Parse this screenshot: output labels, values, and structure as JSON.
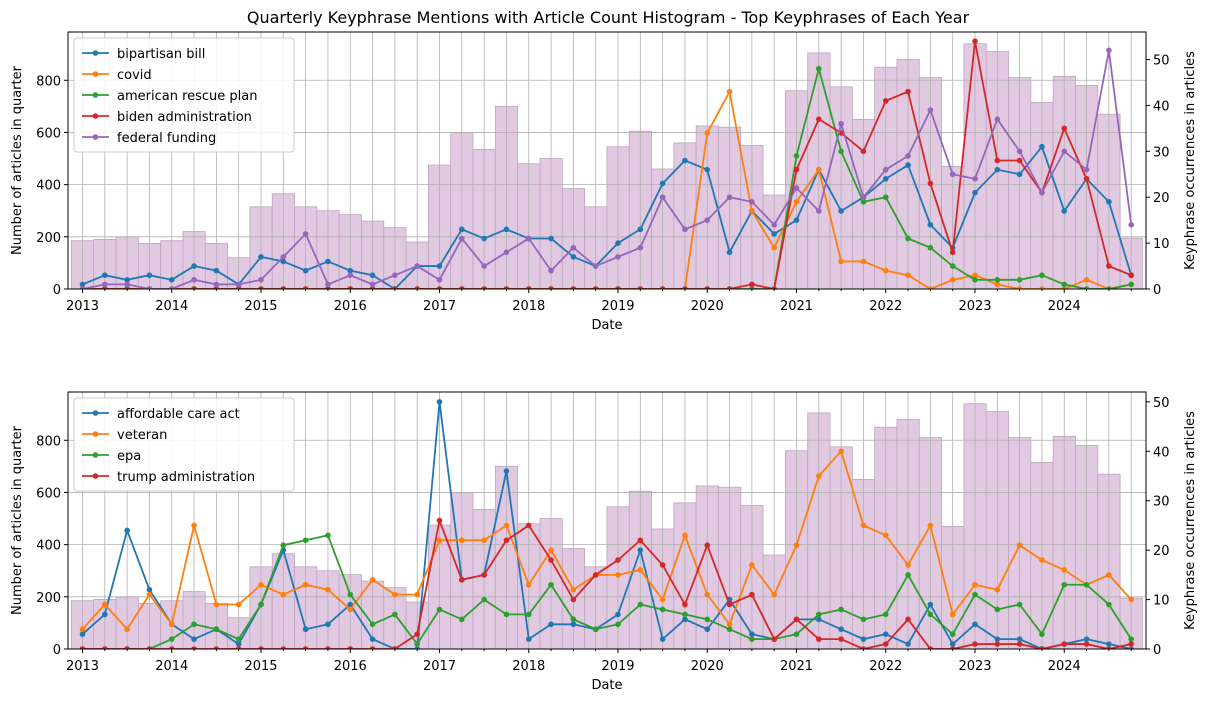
{
  "title": "Quarterly Keyphrase Mentions with Article Count Histogram - Top Keyphrases of Each Year",
  "colors": {
    "hist_fill": "#e1c9e1",
    "hist_edge": "#bfa4bf",
    "grid": "#b0b0b0"
  },
  "chart_data": [
    {
      "type": "line",
      "xlabel": "Date",
      "ylabel_left": "Number of articles in quarter",
      "ylabel_right": "Keyphrase occurrences in articles",
      "ylim_left": [
        0,
        985
      ],
      "ylim_right": [
        0,
        56
      ],
      "yticks_left": [
        "0",
        "200",
        "400",
        "600",
        "800"
      ],
      "yticks_right": [
        "0",
        "10",
        "20",
        "30",
        "40",
        "50"
      ],
      "xticks": [
        "2013",
        "2014",
        "2015",
        "2016",
        "2017",
        "2018",
        "2019",
        "2020",
        "2021",
        "2022",
        "2023",
        "2024"
      ],
      "grid": true,
      "legend_position": "top-left",
      "quarters": [
        "2013Q1",
        "2013Q2",
        "2013Q3",
        "2013Q4",
        "2014Q1",
        "2014Q2",
        "2014Q3",
        "2014Q4",
        "2015Q1",
        "2015Q2",
        "2015Q3",
        "2015Q4",
        "2016Q1",
        "2016Q2",
        "2016Q3",
        "2016Q4",
        "2017Q1",
        "2017Q2",
        "2017Q3",
        "2017Q4",
        "2018Q1",
        "2018Q2",
        "2018Q3",
        "2018Q4",
        "2019Q1",
        "2019Q2",
        "2019Q3",
        "2019Q4",
        "2020Q1",
        "2020Q2",
        "2020Q3",
        "2020Q4",
        "2021Q1",
        "2021Q2",
        "2021Q3",
        "2021Q4",
        "2022Q1",
        "2022Q2",
        "2022Q3",
        "2022Q4",
        "2023Q1",
        "2023Q2",
        "2023Q3",
        "2023Q4",
        "2024Q1",
        "2024Q2",
        "2024Q3",
        "2024Q4"
      ],
      "article_counts": [
        185,
        190,
        200,
        175,
        185,
        220,
        175,
        120,
        315,
        365,
        315,
        300,
        285,
        260,
        235,
        180,
        475,
        600,
        535,
        700,
        480,
        500,
        385,
        315,
        545,
        605,
        460,
        560,
        625,
        620,
        550,
        360,
        760,
        905,
        775,
        650,
        850,
        880,
        810,
        470,
        940,
        910,
        810,
        715,
        815,
        780,
        670,
        195
      ],
      "series": [
        {
          "name": "bipartisan bill",
          "color": "#1f77b4",
          "values": [
            1,
            3,
            2,
            3,
            2,
            5,
            4,
            1,
            7,
            6,
            4,
            6,
            4,
            3,
            0,
            5,
            5,
            13,
            11,
            13,
            11,
            11,
            7,
            5,
            10,
            13,
            23,
            28,
            26,
            8,
            17,
            12,
            15,
            26,
            17,
            20,
            24,
            27,
            14,
            9,
            21,
            26,
            25,
            31,
            17,
            24,
            19,
            3
          ]
        },
        {
          "name": "covid",
          "color": "#ff7f0e",
          "values": [
            0,
            0,
            0,
            0,
            0,
            0,
            0,
            0,
            0,
            0,
            0,
            0,
            0,
            0,
            0,
            0,
            0,
            0,
            0,
            0,
            0,
            0,
            0,
            0,
            0,
            0,
            0,
            0,
            34,
            43,
            17,
            9,
            19,
            26,
            6,
            6,
            4,
            3,
            0,
            2,
            3,
            1,
            0,
            0,
            0,
            2,
            0,
            1
          ]
        },
        {
          "name": "american rescue plan",
          "color": "#2ca02c",
          "values": [
            0,
            0,
            0,
            0,
            0,
            0,
            0,
            0,
            0,
            0,
            0,
            0,
            0,
            0,
            0,
            0,
            0,
            0,
            0,
            0,
            0,
            0,
            0,
            0,
            0,
            0,
            0,
            0,
            0,
            0,
            0,
            0,
            29,
            48,
            30,
            19,
            20,
            11,
            9,
            5,
            2,
            2,
            2,
            3,
            1,
            0,
            0,
            1
          ]
        },
        {
          "name": "biden administration",
          "color": "#d62728",
          "values": [
            0,
            0,
            0,
            0,
            0,
            0,
            0,
            0,
            0,
            0,
            0,
            0,
            0,
            0,
            0,
            0,
            0,
            0,
            0,
            0,
            0,
            0,
            0,
            0,
            0,
            0,
            0,
            0,
            0,
            0,
            1,
            0,
            26,
            37,
            34,
            30,
            41,
            43,
            23,
            8,
            54,
            28,
            28,
            21,
            35,
            24,
            5,
            3
          ]
        },
        {
          "name": "federal funding",
          "color": "#9467bd",
          "values": [
            0,
            1,
            1,
            0,
            0,
            2,
            1,
            1,
            2,
            7,
            12,
            1,
            3,
            1,
            3,
            5,
            2,
            11,
            5,
            8,
            11,
            4,
            9,
            5,
            7,
            9,
            20,
            13,
            15,
            20,
            19,
            14,
            22,
            17,
            36,
            20,
            26,
            29,
            39,
            25,
            24,
            37,
            30,
            21,
            30,
            26,
            52,
            14
          ]
        }
      ]
    },
    {
      "type": "line",
      "xlabel": "Date",
      "ylabel_left": "Number of articles in quarter",
      "ylabel_right": "Keyphrase occurrences in articles",
      "ylim_left": [
        0,
        985
      ],
      "ylim_right": [
        0,
        52
      ],
      "yticks_left": [
        "0",
        "200",
        "400",
        "600",
        "800"
      ],
      "yticks_right": [
        "0",
        "10",
        "20",
        "30",
        "40",
        "50"
      ],
      "xticks": [
        "2013",
        "2014",
        "2015",
        "2016",
        "2017",
        "2018",
        "2019",
        "2020",
        "2021",
        "2022",
        "2023",
        "2024"
      ],
      "grid": true,
      "legend_position": "top-left",
      "quarters": [
        "2013Q1",
        "2013Q2",
        "2013Q3",
        "2013Q4",
        "2014Q1",
        "2014Q2",
        "2014Q3",
        "2014Q4",
        "2015Q1",
        "2015Q2",
        "2015Q3",
        "2015Q4",
        "2016Q1",
        "2016Q2",
        "2016Q3",
        "2016Q4",
        "2017Q1",
        "2017Q2",
        "2017Q3",
        "2017Q4",
        "2018Q1",
        "2018Q2",
        "2018Q3",
        "2018Q4",
        "2019Q1",
        "2019Q2",
        "2019Q3",
        "2019Q4",
        "2020Q1",
        "2020Q2",
        "2020Q3",
        "2020Q4",
        "2021Q1",
        "2021Q2",
        "2021Q3",
        "2021Q4",
        "2022Q1",
        "2022Q2",
        "2022Q3",
        "2022Q4",
        "2023Q1",
        "2023Q2",
        "2023Q3",
        "2023Q4",
        "2024Q1",
        "2024Q2",
        "2024Q3",
        "2024Q4"
      ],
      "article_counts": [
        185,
        190,
        200,
        175,
        185,
        220,
        175,
        120,
        315,
        365,
        315,
        300,
        285,
        260,
        235,
        180,
        475,
        600,
        535,
        700,
        480,
        500,
        385,
        315,
        545,
        605,
        460,
        560,
        625,
        620,
        550,
        360,
        760,
        905,
        775,
        650,
        850,
        880,
        810,
        470,
        940,
        910,
        810,
        715,
        815,
        780,
        670,
        195
      ],
      "series": [
        {
          "name": "affordable care act",
          "color": "#1f77b4",
          "values": [
            3,
            7,
            24,
            12,
            5,
            2,
            4,
            1,
            9,
            20,
            4,
            5,
            9,
            2,
            0,
            0,
            50,
            14,
            15,
            36,
            2,
            5,
            5,
            4,
            7,
            20,
            2,
            6,
            4,
            10,
            3,
            2,
            6,
            6,
            4,
            2,
            3,
            1,
            9,
            1,
            5,
            2,
            2,
            0,
            1,
            2,
            1,
            0
          ]
        },
        {
          "name": "veteran",
          "color": "#ff7f0e",
          "values": [
            4,
            9,
            4,
            11,
            5,
            25,
            9,
            9,
            13,
            11,
            13,
            12,
            8,
            14,
            11,
            11,
            22,
            22,
            22,
            25,
            13,
            20,
            12,
            15,
            15,
            16,
            10,
            23,
            11,
            5,
            17,
            11,
            21,
            35,
            40,
            25,
            23,
            17,
            25,
            7,
            13,
            12,
            21,
            18,
            16,
            13,
            15,
            10
          ]
        },
        {
          "name": "epa",
          "color": "#2ca02c",
          "values": [
            0,
            0,
            0,
            0,
            2,
            5,
            4,
            2,
            9,
            21,
            22,
            23,
            11,
            5,
            7,
            1,
            8,
            6,
            10,
            7,
            7,
            13,
            6,
            4,
            5,
            9,
            8,
            7,
            6,
            4,
            2,
            2,
            3,
            7,
            8,
            6,
            7,
            15,
            7,
            3,
            11,
            8,
            9,
            3,
            13,
            13,
            9,
            2
          ]
        },
        {
          "name": "trump administration",
          "color": "#d62728",
          "values": [
            0,
            0,
            0,
            0,
            0,
            0,
            0,
            0,
            0,
            0,
            0,
            0,
            0,
            0,
            0,
            3,
            26,
            14,
            15,
            22,
            25,
            18,
            10,
            15,
            18,
            22,
            17,
            9,
            21,
            9,
            11,
            2,
            6,
            2,
            2,
            0,
            1,
            6,
            0,
            0,
            1,
            1,
            1,
            0,
            1,
            1,
            0,
            1
          ]
        }
      ]
    }
  ]
}
